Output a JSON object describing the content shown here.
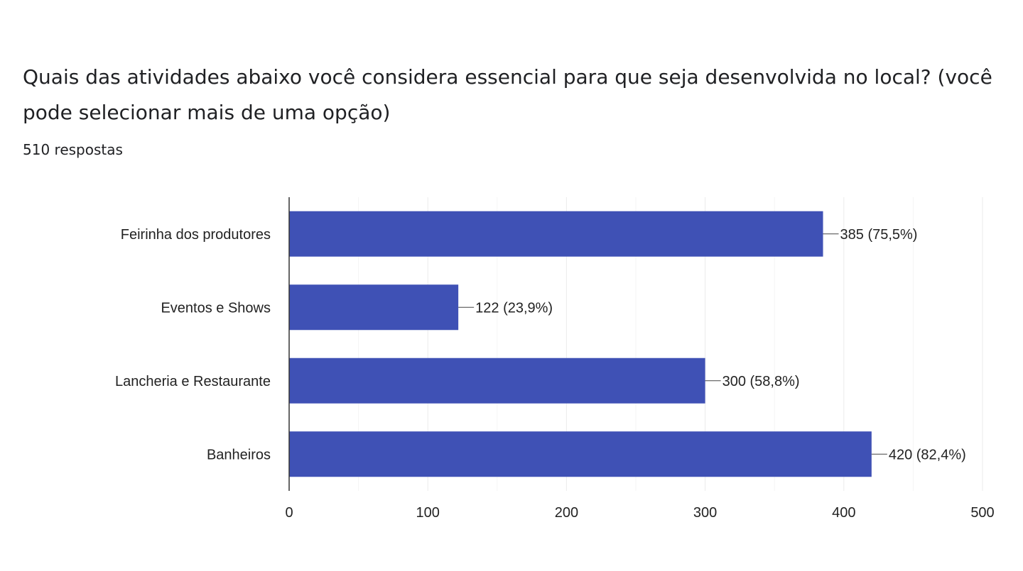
{
  "question": {
    "title": "Quais das atividades abaixo você considera essencial para que seja desenvolvida no local? (você pode selecionar mais de uma opção)",
    "responses": "510 respostas"
  },
  "colors": {
    "bar": "#3f51b5",
    "grid": "#ebebeb",
    "axis": "#333333",
    "text": "#222222"
  },
  "chart_data": {
    "type": "bar",
    "orientation": "horizontal",
    "categories": [
      "Feirinha dos produtores",
      "Eventos e Shows",
      "Lancheria e Restaurante",
      "Banheiros"
    ],
    "values": [
      385,
      122,
      300,
      420
    ],
    "data_labels": [
      "385 (75,5%)",
      "122 (23,9%)",
      "300 (58,8%)",
      "420 (82,4%)"
    ],
    "xlim": [
      0,
      500
    ],
    "xticks": [
      0,
      100,
      200,
      300,
      400,
      500
    ],
    "xtick_labels": [
      "0",
      "100",
      "200",
      "300",
      "400",
      "500"
    ],
    "grid": true
  }
}
